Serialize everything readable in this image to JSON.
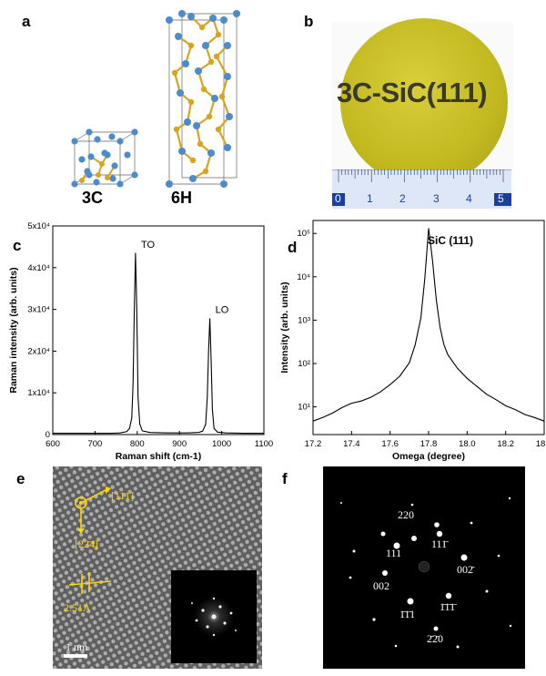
{
  "panels": {
    "a": {
      "letter": "a",
      "labels": [
        "3C",
        "6H"
      ]
    },
    "b": {
      "letter": "b",
      "wafer_text": "3C-SiC(111)",
      "ruler_ticks": [
        "0",
        "1",
        "2",
        "3",
        "4",
        "5"
      ]
    },
    "c": {
      "letter": "c"
    },
    "d": {
      "letter": "d"
    },
    "e": {
      "letter": "e",
      "dir1": "[111]",
      "dir2": "[22̄4]",
      "spacing": "2.51Å",
      "scale": "1 nm"
    },
    "f": {
      "letter": "f",
      "spots": [
        "220",
        "111̄",
        "111",
        "002̄",
        "002",
        "1̄1̄1̄",
        "1̄1̄1",
        "2̄2̄0"
      ]
    }
  },
  "colors": {
    "wafer": "#c9c12a",
    "si_atom": "#4a8ccc",
    "c_atom": "#d9a520",
    "ruler": "#1a3fa0",
    "hrtem_annot": "#ffd700"
  },
  "chart_data": [
    {
      "type": "line",
      "panel": "c",
      "title": "",
      "xlabel": "Raman shift (cm-1)",
      "ylabel": "Raman intensity (arb. units)",
      "xlim": [
        600,
        1100
      ],
      "ylim": [
        0,
        50000
      ],
      "xticks": [
        "600",
        "700",
        "800",
        "900",
        "1000",
        "1100"
      ],
      "yticks": [
        "0",
        "1x10⁴",
        "2x10⁴",
        "3x10⁴",
        "4x10⁴",
        "5x10⁴"
      ],
      "annotations": [
        {
          "text": "TO",
          "x": 796,
          "y": 43500
        },
        {
          "text": "LO",
          "x": 972,
          "y": 27800
        }
      ],
      "series": [
        {
          "x": [
            600,
            650,
            700,
            740,
            760,
            775,
            782,
            787,
            790,
            793,
            796,
            799,
            802,
            806,
            812,
            830,
            870,
            920,
            945,
            955,
            962,
            966,
            969,
            972,
            975,
            978,
            982,
            990,
            1010,
            1050,
            1100
          ],
          "y": [
            300,
            300,
            300,
            300,
            400,
            700,
            1500,
            4000,
            12000,
            30000,
            43500,
            30000,
            9000,
            2500,
            900,
            500,
            400,
            400,
            500,
            800,
            2500,
            9000,
            20000,
            27800,
            18000,
            6000,
            1500,
            600,
            400,
            300,
            300
          ]
        }
      ]
    },
    {
      "type": "line",
      "panel": "d",
      "title": "",
      "xlabel": "Omega (degree)",
      "ylabel": "Intensity (arb. units)",
      "xlim": [
        17.2,
        18.4
      ],
      "ylim": [
        5,
        300000
      ],
      "yscale": "log",
      "xticks": [
        "17.2",
        "17.4",
        "17.6",
        "17.8",
        "18.0",
        "18.2",
        "18.4"
      ],
      "yticks": [
        "10¹",
        "10²",
        "10³",
        "10⁴",
        "10⁵"
      ],
      "annotations": [
        {
          "text": "SiC (111)"
        }
      ],
      "series": [
        {
          "x": [
            17.2,
            17.25,
            17.3,
            17.35,
            17.4,
            17.45,
            17.5,
            17.55,
            17.6,
            17.65,
            17.7,
            17.73,
            17.76,
            17.78,
            17.8,
            17.82,
            17.84,
            17.86,
            17.88,
            17.9,
            17.95,
            18.0,
            18.05,
            18.1,
            18.15,
            18.2,
            18.25,
            18.3,
            18.35,
            18.4
          ],
          "y": [
            10,
            12,
            15,
            20,
            25,
            28,
            34,
            45,
            65,
            100,
            200,
            500,
            2000,
            15000,
            200000,
            40000,
            5000,
            1200,
            500,
            300,
            150,
            90,
            60,
            40,
            30,
            22,
            18,
            14,
            12,
            10
          ]
        }
      ]
    }
  ]
}
